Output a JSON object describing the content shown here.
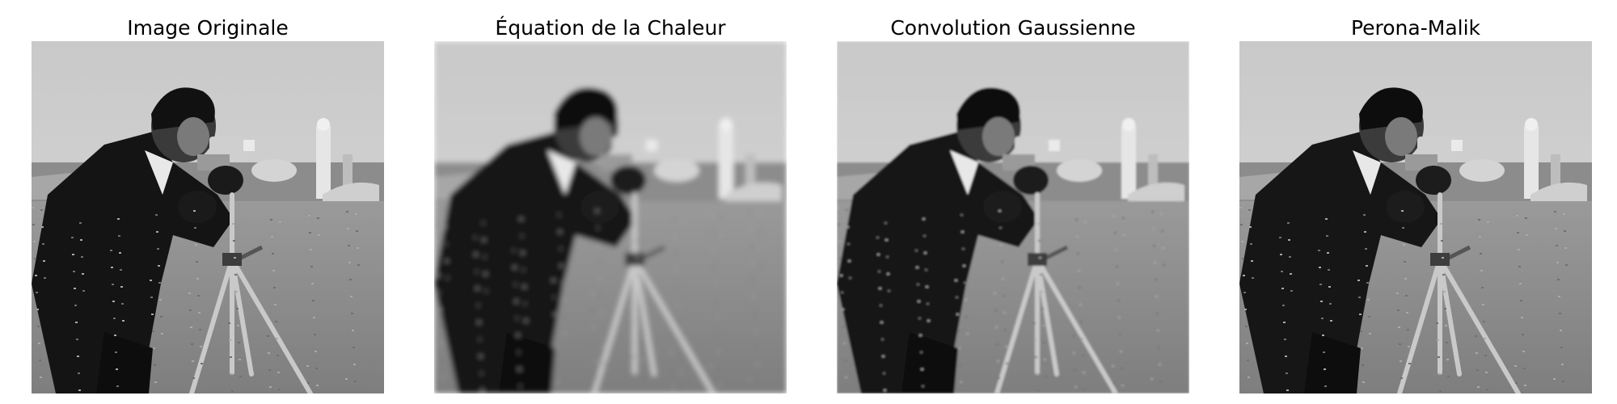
{
  "panels": [
    {
      "title": "Image Originale",
      "blur": 0,
      "kind": "original"
    },
    {
      "title": "Équation de la Chaleur",
      "blur": 3.2,
      "kind": "heat"
    },
    {
      "title": "Convolution Gaussienne",
      "blur": 1.4,
      "kind": "gaussian"
    },
    {
      "title": "Perona-Malik",
      "blur": 0.3,
      "kind": "perona-malik"
    }
  ],
  "image_subject": "cameraman"
}
